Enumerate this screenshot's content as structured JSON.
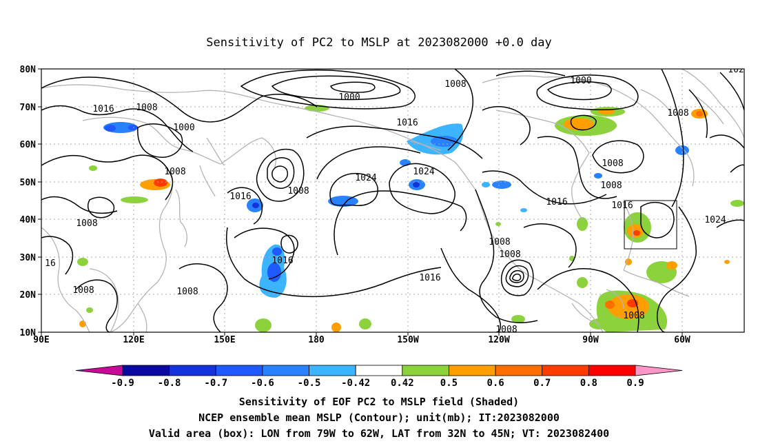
{
  "title": "Sensitivity of PC2 to MSLP at 2023082000 +0.0 day",
  "lat_ticks": [
    "80N",
    "70N",
    "60N",
    "50N",
    "40N",
    "30N",
    "20N",
    "10N"
  ],
  "lon_ticks": [
    "90E",
    "120E",
    "150E",
    "180",
    "150W",
    "120W",
    "90W",
    "60W"
  ],
  "contour_labels": [
    {
      "text": "1016"
    },
    {
      "text": "1008"
    },
    {
      "text": "1000"
    },
    {
      "text": "1008"
    },
    {
      "text": "1008"
    },
    {
      "text": "1016"
    },
    {
      "text": "1008"
    },
    {
      "text": "1024"
    },
    {
      "text": "1024"
    },
    {
      "text": "1000"
    },
    {
      "text": "1016"
    },
    {
      "text": "1008"
    },
    {
      "text": "1016"
    },
    {
      "text": "1000"
    },
    {
      "text": "1008"
    },
    {
      "text": "1016"
    },
    {
      "text": "1008"
    },
    {
      "text": "1008"
    },
    {
      "text": "1016"
    },
    {
      "text": "1008"
    },
    {
      "text": "1016"
    },
    {
      "text": "1024"
    },
    {
      "text": "1008"
    },
    {
      "text": "1008"
    },
    {
      "text": "1008"
    },
    {
      "text": "16"
    },
    {
      "text": "102"
    }
  ],
  "colorbar": {
    "labels": [
      "-0.9",
      "-0.8",
      "-0.7",
      "-0.6",
      "-0.5",
      "-0.42",
      "0.42",
      "0.5",
      "0.6",
      "0.7",
      "0.8",
      "0.9"
    ],
    "colors": [
      "#c80a96",
      "#0a0aa0",
      "#1432dc",
      "#1e5aff",
      "#2882ff",
      "#3cb4ff",
      "#ffffff",
      "#8cd23c",
      "#ff9e00",
      "#ff6e00",
      "#ff3c00",
      "#ff0000",
      "#ff96c8"
    ]
  },
  "footer": [
    "Sensitivity of EOF PC2 to MSLP field (Shaded)",
    "NCEP ensemble mean MSLP (Contour); unit(mb); IT:2023082000",
    "Valid area (box): LON from 79W to 62W, LAT from 32N to 45N; VT: 2023082400"
  ],
  "valid_box": {
    "lon_min": -79,
    "lon_max": -62,
    "lat_min": 32,
    "lat_max": 45
  },
  "colors": {
    "coast": "#b4b4b4",
    "grid": "#aaaaaa",
    "contour": "#000000"
  }
}
